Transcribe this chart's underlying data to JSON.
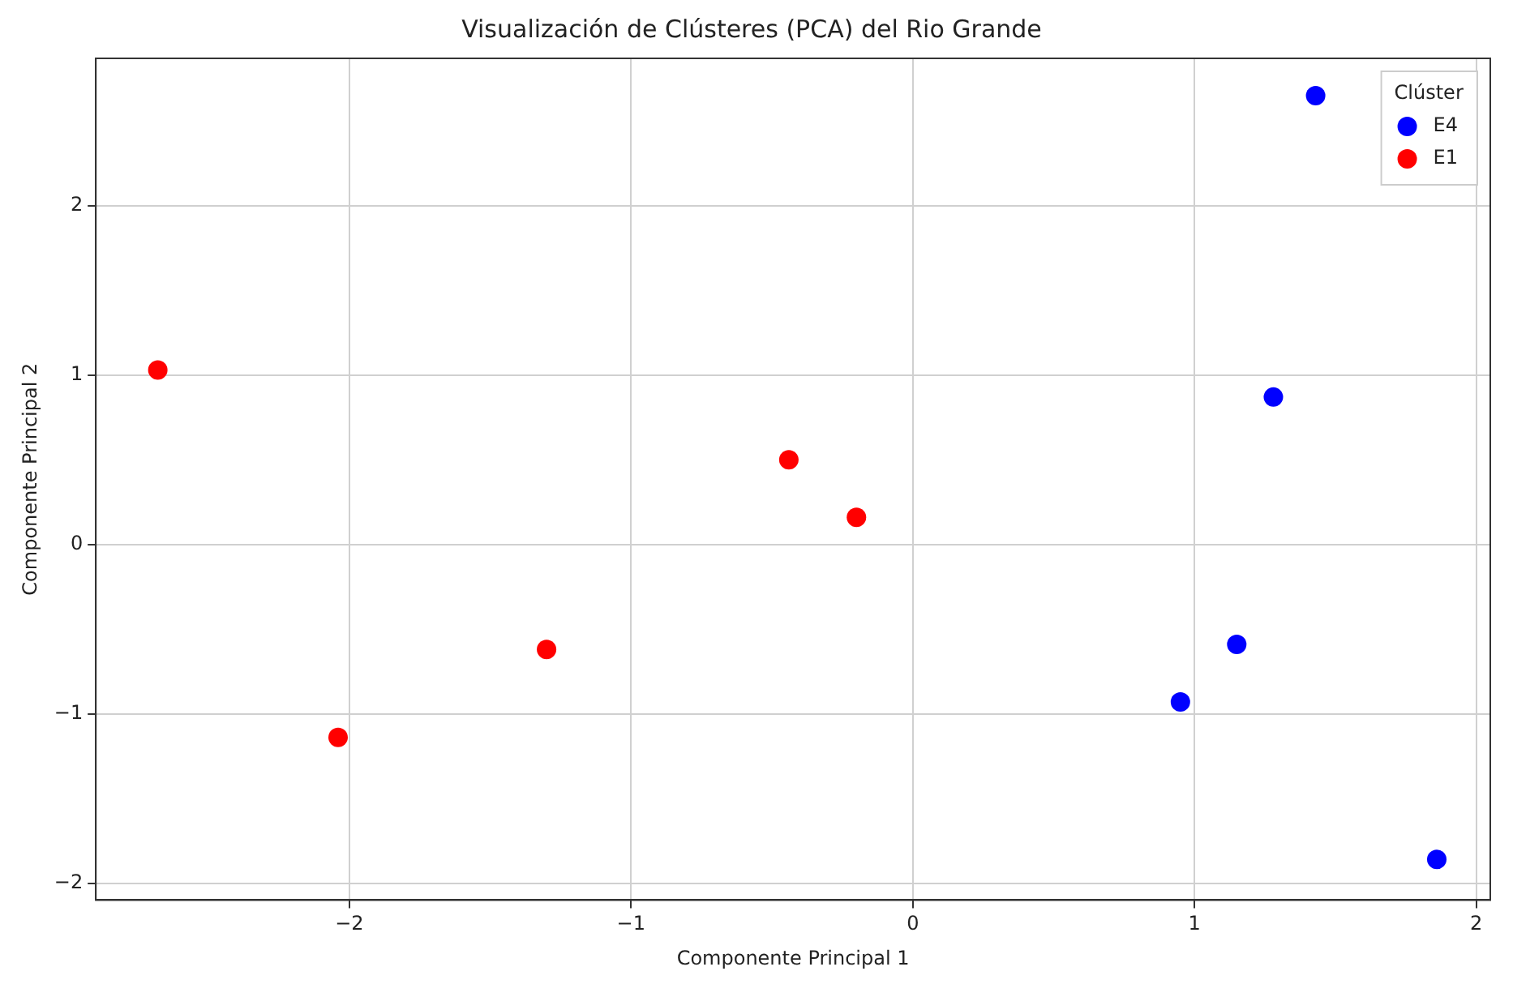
{
  "chart_data": {
    "type": "scatter",
    "title": "Visualización de Clústeres (PCA) del Rio Grande",
    "xlabel": "Componente Principal 1",
    "ylabel": "Componente Principal 2",
    "legend_title": "Clúster",
    "legend": "top right",
    "grid": true,
    "marker": "circle",
    "series": [
      {
        "name": "E4",
        "color": "#0000ff",
        "x": [
          1.43,
          1.28,
          1.15,
          0.95,
          1.86
        ],
        "values": [
          2.65,
          0.87,
          -0.59,
          -0.93,
          -1.86
        ]
      },
      {
        "name": "E1",
        "color": "#ff0000",
        "x": [
          -2.68,
          -0.44,
          -0.2,
          -1.3,
          -2.04
        ],
        "values": [
          1.03,
          0.5,
          0.16,
          -0.62,
          -1.14
        ]
      }
    ],
    "xlim": [
      -2.9,
      2.05
    ],
    "xticks": [
      {
        "value": -2,
        "label": "−2"
      },
      {
        "value": -1,
        "label": "−1"
      },
      0,
      1,
      2
    ],
    "ylim": [
      -2.1,
      2.87
    ],
    "yticks": [
      {
        "value": -2,
        "label": "−2"
      },
      {
        "value": -1,
        "label": "−1"
      },
      0,
      1,
      2
    ]
  }
}
